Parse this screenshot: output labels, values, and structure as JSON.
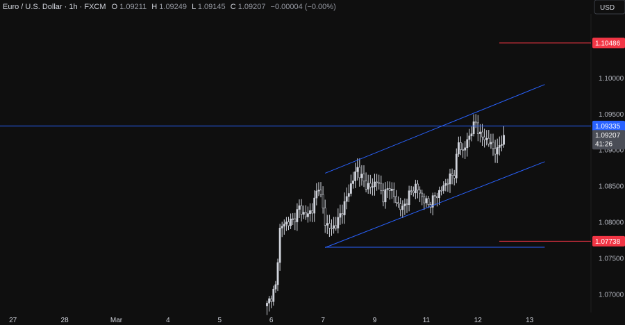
{
  "header": {
    "symbol": "Euro / U.S. Dollar · 1h · FXCM",
    "o_label": "O",
    "o_value": "1.09211",
    "h_label": "H",
    "h_value": "1.09249",
    "l_label": "L",
    "l_value": "1.09145",
    "c_label": "C",
    "c_value": "1.09207",
    "change": "−0.00004 (−0.00%)"
  },
  "currency_button": "USD",
  "colors": {
    "background": "#0f0f0f",
    "candle": "#d1d4dc",
    "trendline": "#2962ff",
    "level_red": "#f23645",
    "level_blue": "#2962ff",
    "price_tag_gray": "#4a4d56",
    "text_muted": "#b2b5be"
  },
  "chart_data": {
    "type": "candlestick",
    "title": "Euro / U.S. Dollar · 1h · FXCM",
    "ylim": [
      1.0675,
      1.1085
    ],
    "x_ticks": [
      {
        "label": "27",
        "index": -118
      },
      {
        "label": "28",
        "index": -94
      },
      {
        "label": "Mar",
        "index": -70
      },
      {
        "label": "4",
        "index": -46
      },
      {
        "label": "5",
        "index": -22
      },
      {
        "label": "6",
        "index": 2
      },
      {
        "label": "7",
        "index": 26
      },
      {
        "label": "9",
        "index": 50
      },
      {
        "label": "11",
        "index": 74
      },
      {
        "label": "12",
        "index": 98
      },
      {
        "label": "13",
        "index": 122
      }
    ],
    "y_ticks": [
      1.1,
      1.095,
      1.09,
      1.085,
      1.08,
      1.075,
      1.07
    ],
    "y_tick_labels": [
      "1.10000",
      "1.09500",
      "1.09000",
      "1.08500",
      "1.08000",
      "1.07500",
      "1.07000"
    ],
    "levels": [
      {
        "price": 1.10486,
        "label": "1.10486",
        "color": "#f23645",
        "line": "short"
      },
      {
        "price": 1.09335,
        "label": "1.09335",
        "color": "#2962ff",
        "line": "full"
      },
      {
        "price": 1.07738,
        "label": "1.07738",
        "color": "#f23645",
        "line": "short"
      }
    ],
    "current_price": {
      "price": 1.09207,
      "label": "1.09207",
      "countdown": "41:26"
    },
    "support_line": {
      "price": 1.07655,
      "from_index": 27,
      "to_index": 129
    },
    "channel_upper": {
      "p1": [
        27,
        1.0868
      ],
      "p2": [
        129,
        1.0991
      ]
    },
    "channel_lower": {
      "p1": [
        27,
        1.0765
      ],
      "p2": [
        129,
        1.0884
      ]
    },
    "anchors": [
      [
        0,
        1.0685
      ],
      [
        4,
        1.071
      ],
      [
        6,
        1.079
      ],
      [
        8,
        1.0798
      ],
      [
        12,
        1.0802
      ],
      [
        15,
        1.082
      ],
      [
        18,
        1.0808
      ],
      [
        21,
        1.0818
      ],
      [
        24,
        1.0852
      ],
      [
        27,
        1.08
      ],
      [
        30,
        1.079
      ],
      [
        33,
        1.0802
      ],
      [
        36,
        1.0825
      ],
      [
        39,
        1.0852
      ],
      [
        42,
        1.0875
      ],
      [
        45,
        1.0855
      ],
      [
        48,
        1.0848
      ],
      [
        51,
        1.0858
      ],
      [
        54,
        1.0835
      ],
      [
        57,
        1.085
      ],
      [
        60,
        1.0828
      ],
      [
        63,
        1.0818
      ],
      [
        66,
        1.0838
      ],
      [
        69,
        1.085
      ],
      [
        72,
        1.0835
      ],
      [
        75,
        1.0824
      ],
      [
        78,
        1.0835
      ],
      [
        81,
        1.0845
      ],
      [
        84,
        1.0858
      ],
      [
        87,
        1.0868
      ],
      [
        89,
        1.091
      ],
      [
        91,
        1.0898
      ],
      [
        93,
        1.0912
      ],
      [
        95,
        1.0928
      ],
      [
        97,
        1.0938
      ],
      [
        99,
        1.092
      ],
      [
        102,
        1.0915
      ],
      [
        105,
        1.0903
      ],
      [
        107,
        1.0897
      ],
      [
        108,
        1.0907
      ],
      [
        110,
        1.092
      ]
    ]
  }
}
